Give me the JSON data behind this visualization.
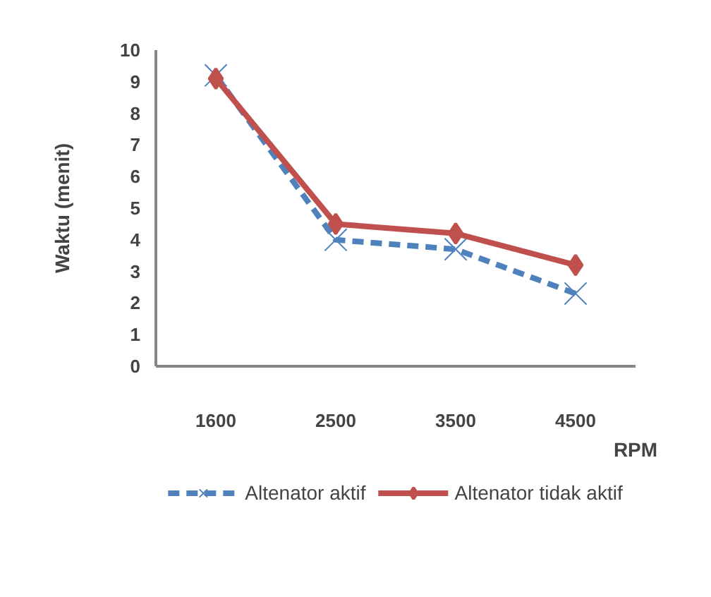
{
  "chart_data": {
    "type": "line",
    "xlabel": "RPM",
    "ylabel": "Waktu (menit)",
    "categories": [
      "1600",
      "2500",
      "3500",
      "4500"
    ],
    "series": [
      {
        "name": "Altenator aktif",
        "color": "#4f81bd",
        "values": [
          9.2,
          4.0,
          3.7,
          2.3
        ],
        "marker": "cross",
        "line_style": "dashed"
      },
      {
        "name": "Altenator tidak aktif",
        "color": "#c0504d",
        "values": [
          9.1,
          4.5,
          4.2,
          3.2
        ],
        "marker": "diamond",
        "line_style": "solid"
      }
    ],
    "ylim": [
      0,
      10
    ],
    "yticks": [
      0,
      1,
      2,
      3,
      4,
      5,
      6,
      7,
      8,
      9,
      10
    ],
    "grid": false,
    "legend": "bottom"
  }
}
